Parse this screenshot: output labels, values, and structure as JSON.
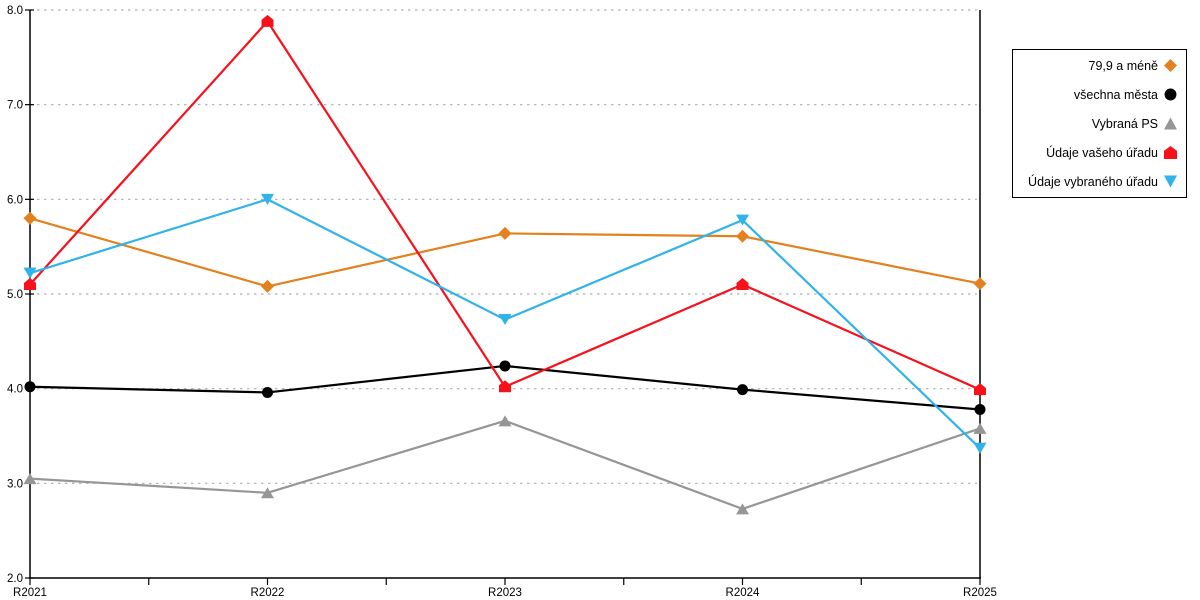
{
  "chart_data": {
    "type": "line",
    "title": "",
    "xlabel": "",
    "ylabel": "",
    "categories": [
      "R2021",
      "R2022",
      "R2023",
      "R2024",
      "R2025"
    ],
    "series": [
      {
        "name": "79,9 a méně",
        "color": "#E2811E",
        "marker": "diamond",
        "values": [
          5.8,
          5.08,
          5.64,
          5.61,
          5.11
        ]
      },
      {
        "name": "všechna města",
        "color": "#000000",
        "marker": "circle",
        "values": [
          4.02,
          3.96,
          4.24,
          3.99,
          3.78
        ]
      },
      {
        "name": "Vybraná PS",
        "color": "#969696",
        "marker": "triangle-up",
        "values": [
          3.05,
          2.9,
          3.66,
          2.73,
          3.58
        ]
      },
      {
        "name": "Údaje vašeho úřadu",
        "color": "#F6111B",
        "marker": "pentagon",
        "values": [
          5.1,
          7.88,
          4.02,
          5.1,
          3.99
        ]
      },
      {
        "name": "Údaje vybraného úřadu",
        "color": "#2FB3E8",
        "marker": "triangle-down",
        "values": [
          5.22,
          6.0,
          4.73,
          5.78,
          3.37
        ]
      }
    ],
    "ylim": [
      2.0,
      8.0
    ],
    "y_tick_step": 1.0,
    "y_tick_labels": [
      "8.0",
      "7.0",
      "6.0",
      "5.0",
      "4.0",
      "3.0",
      "2.0"
    ],
    "grid": "horizontal-dotted",
    "legend_position": "right"
  },
  "colors": {
    "background": "#FFFFFF",
    "axis": "#000000",
    "grid": "#AFAFAF",
    "legend_border": "#000000"
  }
}
